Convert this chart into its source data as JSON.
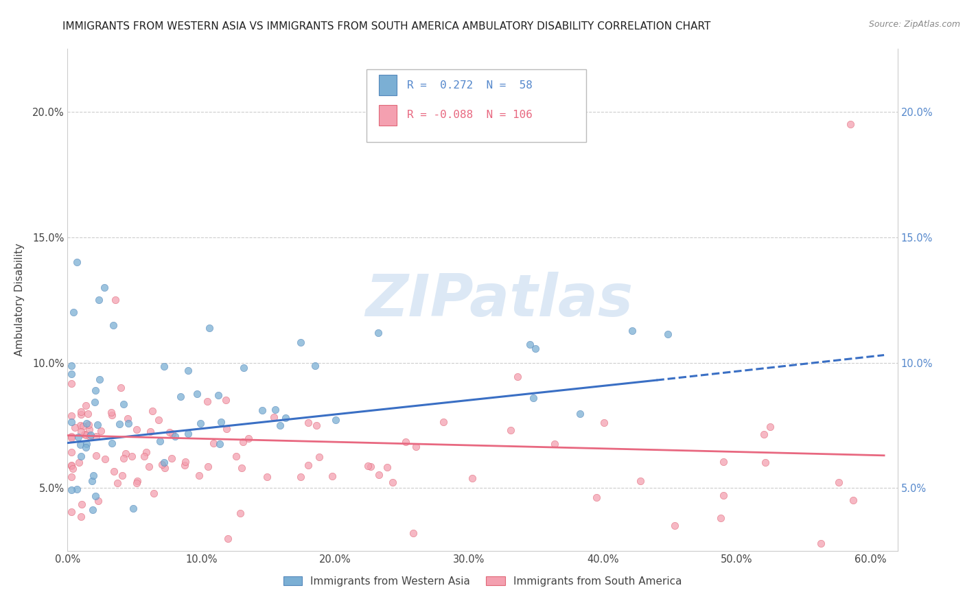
{
  "title": "IMMIGRANTS FROM WESTERN ASIA VS IMMIGRANTS FROM SOUTH AMERICA AMBULATORY DISABILITY CORRELATION CHART",
  "source": "Source: ZipAtlas.com",
  "ylabel": "Ambulatory Disability",
  "watermark_text": "ZIPatlas",
  "legend1_label": "Immigrants from Western Asia",
  "legend2_label": "Immigrants from South America",
  "r1": "0.272",
  "n1": "58",
  "r2": "-0.088",
  "n2": "106",
  "blue_color": "#7BAFD4",
  "pink_color": "#F4A0B0",
  "blue_line_color": "#3A6FC4",
  "pink_line_color": "#E86880",
  "blue_edge_color": "#5588BB",
  "pink_edge_color": "#E06878",
  "right_axis_color": "#5588CC",
  "xlim": [
    0.0,
    0.62
  ],
  "ylim": [
    0.025,
    0.225
  ],
  "yticks": [
    0.05,
    0.1,
    0.15,
    0.2
  ],
  "ytick_labels": [
    "5.0%",
    "10.0%",
    "15.0%",
    "20.0%"
  ],
  "xticks": [
    0.0,
    0.1,
    0.2,
    0.3,
    0.4,
    0.5,
    0.6
  ],
  "xtick_labels": [
    "0.0%",
    "10.0%",
    "20.0%",
    "30.0%",
    "40.0%",
    "50.0%",
    "60.0%"
  ],
  "blue_line_x_solid_end": 0.44,
  "blue_line_x_dash_end": 0.61,
  "blue_line_y_start": 0.068,
  "blue_line_y_solid_end": 0.093,
  "blue_line_y_dash_end": 0.103,
  "pink_line_y_start": 0.071,
  "pink_line_y_end": 0.063
}
